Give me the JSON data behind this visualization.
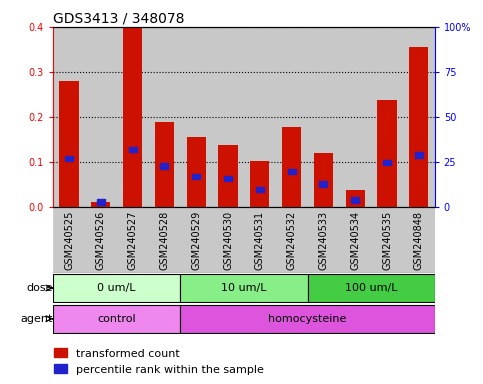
{
  "title": "GDS3413 / 348078",
  "samples": [
    "GSM240525",
    "GSM240526",
    "GSM240527",
    "GSM240528",
    "GSM240529",
    "GSM240530",
    "GSM240531",
    "GSM240532",
    "GSM240533",
    "GSM240534",
    "GSM240535",
    "GSM240848"
  ],
  "red_values": [
    0.28,
    0.012,
    0.4,
    0.19,
    0.155,
    0.138,
    0.103,
    0.178,
    0.12,
    0.038,
    0.237,
    0.355
  ],
  "blue_pct": [
    27,
    3,
    32,
    23,
    17,
    16,
    10,
    20,
    13,
    4,
    25,
    29
  ],
  "ylim_left": [
    0,
    0.4
  ],
  "ylim_right": [
    0,
    100
  ],
  "yticks_left": [
    0.0,
    0.1,
    0.2,
    0.3,
    0.4
  ],
  "yticks_right": [
    0,
    25,
    50,
    75,
    100
  ],
  "ytick_labels_right": [
    "0",
    "25",
    "50",
    "75",
    "100%"
  ],
  "dose_groups": [
    {
      "label": "0 um/L",
      "start": 0,
      "end": 4
    },
    {
      "label": "10 um/L",
      "start": 4,
      "end": 8
    },
    {
      "label": "100 um/L",
      "start": 8,
      "end": 12
    }
  ],
  "dose_colors": [
    "#ccffcc",
    "#88ee88",
    "#44cc44"
  ],
  "agent_groups": [
    {
      "label": "control",
      "start": 0,
      "end": 4
    },
    {
      "label": "homocysteine",
      "start": 4,
      "end": 12
    }
  ],
  "agent_colors": [
    "#ee88ee",
    "#dd55dd"
  ],
  "bar_color": "#cc1100",
  "blue_color": "#2222cc",
  "cell_bg": "#c8c8c8",
  "title_fontsize": 10,
  "tick_fontsize": 7,
  "label_fontsize": 8,
  "legend_fontsize": 8
}
